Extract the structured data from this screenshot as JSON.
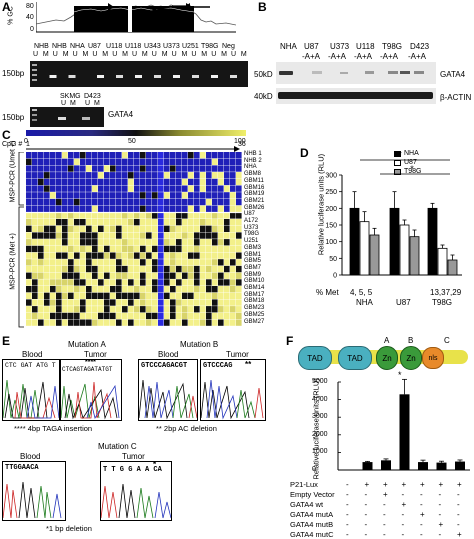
{
  "panels": {
    "A": {
      "label": "A",
      "gc_axis_label": "% GC",
      "gc_ticks": [
        "80",
        "40",
        "0"
      ],
      "gel_top": {
        "marker": "150bp",
        "samples": [
          "NHB",
          "NHB",
          "NHA",
          "U87",
          "U118",
          "U118",
          "U343",
          "U373",
          "U251",
          "T98G",
          "Neg"
        ],
        "um": [
          "U",
          "M",
          "U",
          "M",
          "U",
          "M",
          "U",
          "M",
          "U",
          "M",
          "U",
          "M",
          "U",
          "M",
          "U",
          "M",
          "U",
          "M",
          "U",
          "M",
          "U",
          "M"
        ]
      },
      "gel_bottom": {
        "marker": "150bp",
        "samples": [
          "SKMG",
          "D423"
        ],
        "um": [
          "U",
          "M",
          "U",
          "M"
        ],
        "gene": "GATA4"
      }
    },
    "B": {
      "label": "B",
      "samples": [
        "NHA",
        "U87\n-A+A",
        "U373\n-A+A",
        "U118\n-A+A",
        "T98G\n-A+A",
        "D423\n-A+A"
      ],
      "sample_names": [
        "NHA",
        "U87",
        "U373",
        "U118",
        "T98G",
        "D423"
      ],
      "sample_sub": "-A+A",
      "markers": [
        "50kD",
        "40kD"
      ],
      "bands": [
        "GATA4",
        "β-ACTIN"
      ]
    },
    "C": {
      "label": "C",
      "scale_ticks": [
        "0",
        "50",
        "100"
      ],
      "cpg_label": "CpG #",
      "cpg_start": "1",
      "cpg_end": "36",
      "group_unmet": "MSP-PCR (Umet +)",
      "group_met": "MSP-PCR (Met +)",
      "rows": [
        "NHB 1",
        "NHB 2",
        "NHA",
        "GBM8",
        "GBM11",
        "GBM16",
        "GBM19",
        "GBM21",
        "GBM26",
        "U87",
        "A172",
        "U373",
        "T98G",
        "U251",
        "GBM3",
        "GBM1",
        "GBM5",
        "GBM7",
        "GBM9",
        "GBM10",
        "GBM14",
        "GBM17",
        "GBM18",
        "GBM23",
        "GBM25",
        "GBM27"
      ]
    },
    "D": {
      "label": "D",
      "legend": [
        "NHA",
        "U87",
        "T98G"
      ],
      "ylabel": "Relative luciferase units (RLU)",
      "pct_met_label": "% Met",
      "pct_met_values": [
        "4, 5, 5",
        "",
        "13,37,29"
      ],
      "groups": [
        "NHA",
        "U87",
        "T98G"
      ],
      "significance": [
        "*",
        "*"
      ]
    },
    "E": {
      "label": "E",
      "mutations": [
        "Mutation A",
        "Mutation B",
        "Mutation C"
      ],
      "blood": "Blood",
      "tumor": "Tumor",
      "seqA_blood": "CTC GAT ATG T",
      "seqA_tumor": "CTCAGTAGATATGT",
      "seqA_stars": "****",
      "seqB_blood": "GTCCCAGACGT",
      "seqB_tumor": "GTCCCAG",
      "seqB_stars": "**",
      "seqC_blood": "TTGGAACA",
      "seqC_tumor": "T T G G A A CA",
      "seqC_star": "*",
      "noteA": "**** 4bp TAGA insertion",
      "noteB": "** 2bp AC deletion",
      "noteC": "*1 bp deletion"
    },
    "F": {
      "label": "F",
      "domains": [
        "TAD",
        "TAD",
        "Zn",
        "Zn",
        "nls"
      ],
      "domain_letters": [
        "A",
        "B",
        "C"
      ],
      "star": "*",
      "ylabel": "Relative luciferase units (RLU)",
      "yticks": [
        "5000",
        "4000",
        "3000",
        "2000",
        "1000",
        "0"
      ],
      "row_labels": [
        "P21-Lux",
        "Empty Vector",
        "GATA4 wt",
        "GATA4 mutA",
        "GATA4 mutB",
        "GATA4 mutC"
      ],
      "matrix": [
        [
          "-",
          "+",
          "+",
          "+",
          "+",
          "+",
          "+"
        ],
        [
          "-",
          "-",
          "+",
          "-",
          "-",
          "-",
          "-"
        ],
        [
          "-",
          "-",
          "-",
          "+",
          "-",
          "-",
          "-"
        ],
        [
          "-",
          "-",
          "-",
          "-",
          "+",
          "-",
          "-"
        ],
        [
          "-",
          "-",
          "-",
          "-",
          "-",
          "+",
          "-"
        ],
        [
          "-",
          "-",
          "-",
          "-",
          "-",
          "-",
          "+"
        ]
      ]
    }
  },
  "chart_data": [
    {
      "panel": "D",
      "type": "bar",
      "categories": [
        "NHA",
        "U87",
        "T98G"
      ],
      "series": [
        {
          "name": "NHA",
          "values": [
            200,
            200,
            200
          ]
        },
        {
          "name": "U87",
          "values": [
            160,
            150,
            80
          ]
        },
        {
          "name": "T98G",
          "values": [
            120,
            115,
            45
          ]
        }
      ],
      "errors": [
        [
          50,
          50,
          15
        ],
        [
          30,
          15,
          10
        ],
        [
          20,
          20,
          15
        ]
      ],
      "title": "",
      "xlabel": "",
      "ylabel": "Relative luciferase units (RLU)",
      "yticks": [
        0,
        50,
        100,
        150,
        200,
        250,
        300
      ],
      "ylim": [
        0,
        300
      ]
    },
    {
      "panel": "F",
      "type": "bar",
      "categories": [
        "1",
        "2",
        "3",
        "4",
        "5",
        "6",
        "7"
      ],
      "values": [
        0,
        450,
        550,
        4300,
        450,
        420,
        480
      ],
      "errors": [
        0,
        40,
        80,
        850,
        110,
        80,
        90
      ],
      "title": "",
      "xlabel": "",
      "ylabel": "Relative luciferase units (RLU)",
      "ylim": [
        0,
        5000
      ]
    }
  ]
}
